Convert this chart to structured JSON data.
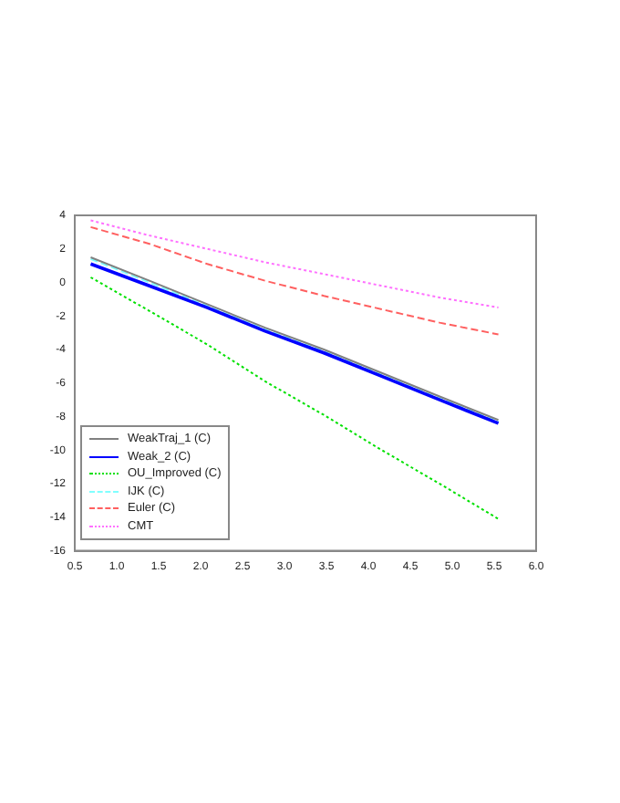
{
  "chart_data": {
    "type": "line",
    "x": [
      0.69,
      1.39,
      2.08,
      2.77,
      3.47,
      4.16,
      4.85,
      5.55
    ],
    "series": [
      {
        "name": "WeakTraj_1 (C)",
        "color": "#808080",
        "line_style": "solid",
        "values": [
          1.5,
          0.1,
          -1.3,
          -2.7,
          -4.0,
          -5.4,
          -6.8,
          -8.2
        ]
      },
      {
        "name": "Weak_2 (C)",
        "color": "#0000ff",
        "line_style": "solid",
        "values": [
          1.1,
          -0.2,
          -1.5,
          -2.9,
          -4.2,
          -5.6,
          -7.0,
          -8.4
        ]
      },
      {
        "name": "OU_Improved (C)",
        "color": "#00e000",
        "line_style": "dotted",
        "values": [
          0.3,
          -1.7,
          -3.7,
          -5.9,
          -7.9,
          -10.0,
          -12.0,
          -14.1
        ]
      },
      {
        "name": "IJK (C)",
        "color": "#80ffff",
        "line_style": "dashed",
        "values": [
          1.4,
          0.0,
          -1.4,
          -2.8,
          -4.1,
          -5.5,
          -6.9,
          -8.3
        ]
      },
      {
        "name": "Euler (C)",
        "color": "#ff6060",
        "line_style": "dashed",
        "values": [
          3.3,
          2.3,
          1.1,
          0.1,
          -0.8,
          -1.6,
          -2.4,
          -3.1
        ]
      },
      {
        "name": "CMT",
        "color": "#ff70ff",
        "line_style": "dotted",
        "values": [
          3.7,
          2.8,
          2.0,
          1.2,
          0.5,
          -0.2,
          -0.9,
          -1.5
        ]
      }
    ],
    "xlim": [
      0.5,
      6.0
    ],
    "xticks": [
      0.5,
      {
        "value": 1,
        "label": "1.0"
      },
      1.5,
      {
        "value": 2,
        "label": "2.0"
      },
      2.5,
      {
        "value": 3,
        "label": "3.0"
      },
      3.5,
      {
        "value": 4,
        "label": "4.0"
      },
      4.5,
      {
        "value": 5,
        "label": "5.0"
      },
      5.5,
      {
        "value": 6,
        "label": "6.0"
      }
    ],
    "ylim": [
      -16,
      4
    ],
    "yticks": [
      -16,
      -14,
      -12,
      -10,
      -8,
      -6,
      -4,
      -2,
      0,
      2,
      4
    ],
    "grid": false,
    "legend": "bottom left",
    "marker": "none"
  }
}
